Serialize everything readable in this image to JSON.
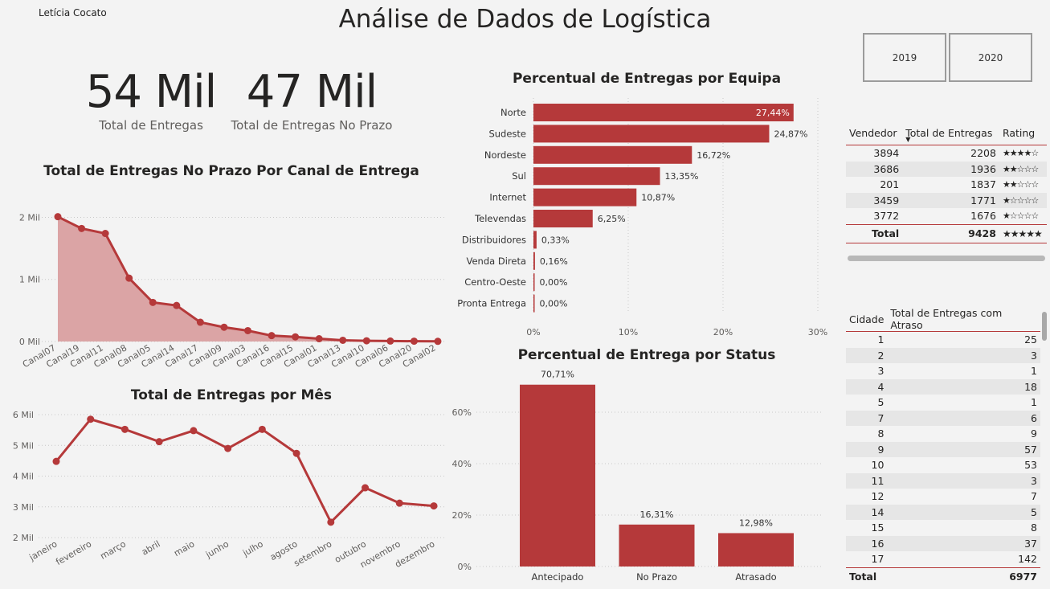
{
  "author": "Letícia Cocato",
  "title": "Análise de Dados de Logística",
  "kpis": [
    {
      "value": "54 Mil",
      "label": "Total de Entregas"
    },
    {
      "value": "47 Mil",
      "label": "Total de Entregas No Prazo"
    }
  ],
  "year_buttons": [
    "2019",
    "2020"
  ],
  "colors": {
    "accent": "#b5393a",
    "area_fill": "#dba4a5",
    "grid": "#c8c8c8"
  },
  "chart_data": [
    {
      "id": "canal",
      "type": "area",
      "title": "Total de Entregas No Prazo Por Canal de Entrega",
      "categories": [
        "Canal07",
        "Canal19",
        "Canal11",
        "Canal08",
        "Canal05",
        "Canal14",
        "Canal17",
        "Canal09",
        "Canal03",
        "Canal16",
        "Canal15",
        "Canal01",
        "Canal13",
        "Canal10",
        "Canal06",
        "Canal20",
        "Canal02"
      ],
      "values": [
        2010,
        1820,
        1740,
        1020,
        630,
        580,
        310,
        230,
        175,
        95,
        75,
        45,
        20,
        12,
        8,
        5,
        3
      ],
      "yticks": [
        0,
        1000,
        2000
      ],
      "ytick_labels": [
        "0 Mil",
        "1 Mil",
        "2 Mil"
      ],
      "ylim": [
        0,
        2200
      ]
    },
    {
      "id": "mes",
      "type": "line",
      "title": "Total de Entregas por Mês",
      "categories": [
        "janeiro",
        "fevereiro",
        "março",
        "abril",
        "maio",
        "junho",
        "julho",
        "agosto",
        "setembro",
        "outubro",
        "novembro",
        "dezembro"
      ],
      "values": [
        4480,
        5850,
        5520,
        5120,
        5480,
        4900,
        5520,
        4740,
        2500,
        3620,
        3120,
        3030
      ],
      "yticks": [
        2000,
        3000,
        4000,
        5000,
        6000
      ],
      "ytick_labels": [
        "2 Mil",
        "3 Mil",
        "4 Mil",
        "5 Mil",
        "6 Mil"
      ],
      "ylim": [
        2000,
        6000
      ]
    },
    {
      "id": "equipa",
      "type": "bar",
      "orientation": "horizontal",
      "title": "Percentual de Entregas por Equipa",
      "categories": [
        "Norte",
        "Sudeste",
        "Nordeste",
        "Sul",
        "Internet",
        "Televendas",
        "Distribuidores",
        "Venda Direta",
        "Centro-Oeste",
        "Pronta Entrega"
      ],
      "values": [
        27.44,
        24.87,
        16.72,
        13.35,
        10.87,
        6.25,
        0.33,
        0.16,
        0.0,
        0.0
      ],
      "data_labels": [
        "27,44%",
        "24,87%",
        "16,72%",
        "13,35%",
        "10,87%",
        "6,25%",
        "0,33%",
        "0,16%",
        "0,00%",
        "0,00%"
      ],
      "xticks": [
        0,
        10,
        20,
        30
      ],
      "xtick_labels": [
        "0%",
        "10%",
        "20%",
        "30%"
      ],
      "xlim": [
        0,
        30
      ]
    },
    {
      "id": "status",
      "type": "bar",
      "title": "Percentual de Entrega por Status",
      "categories": [
        "Antecipado",
        "No Prazo",
        "Atrasado"
      ],
      "values": [
        70.71,
        16.31,
        12.98
      ],
      "data_labels": [
        "70,71%",
        "16,31%",
        "12,98%"
      ],
      "yticks": [
        0,
        20,
        40,
        60
      ],
      "ytick_labels": [
        "0%",
        "20%",
        "40%",
        "60%"
      ],
      "ylim": [
        0,
        75
      ]
    }
  ],
  "vendedor_table": {
    "headers": [
      "Vendedor",
      "Total de Entregas",
      "Rating"
    ],
    "rows": [
      {
        "vendedor": "3894",
        "total": "2208",
        "rating": "★★★★☆"
      },
      {
        "vendedor": "3686",
        "total": "1936",
        "rating": "★★☆☆☆"
      },
      {
        "vendedor": "201",
        "total": "1837",
        "rating": "★★☆☆☆"
      },
      {
        "vendedor": "3459",
        "total": "1771",
        "rating": "★☆☆☆☆"
      },
      {
        "vendedor": "3772",
        "total": "1676",
        "rating": "★☆☆☆☆"
      }
    ],
    "total_row": {
      "label": "Total",
      "total": "9428",
      "rating": "★★★★★"
    }
  },
  "cidade_table": {
    "headers": [
      "Cidade",
      "Total de Entregas com Atraso"
    ],
    "rows": [
      [
        "1",
        "25"
      ],
      [
        "2",
        "3"
      ],
      [
        "3",
        "1"
      ],
      [
        "4",
        "18"
      ],
      [
        "5",
        "1"
      ],
      [
        "7",
        "6"
      ],
      [
        "8",
        "9"
      ],
      [
        "9",
        "57"
      ],
      [
        "10",
        "53"
      ],
      [
        "11",
        "3"
      ],
      [
        "12",
        "7"
      ],
      [
        "14",
        "5"
      ],
      [
        "15",
        "8"
      ],
      [
        "16",
        "37"
      ],
      [
        "17",
        "142"
      ]
    ],
    "total_row": {
      "label": "Total",
      "total": "6977"
    }
  }
}
